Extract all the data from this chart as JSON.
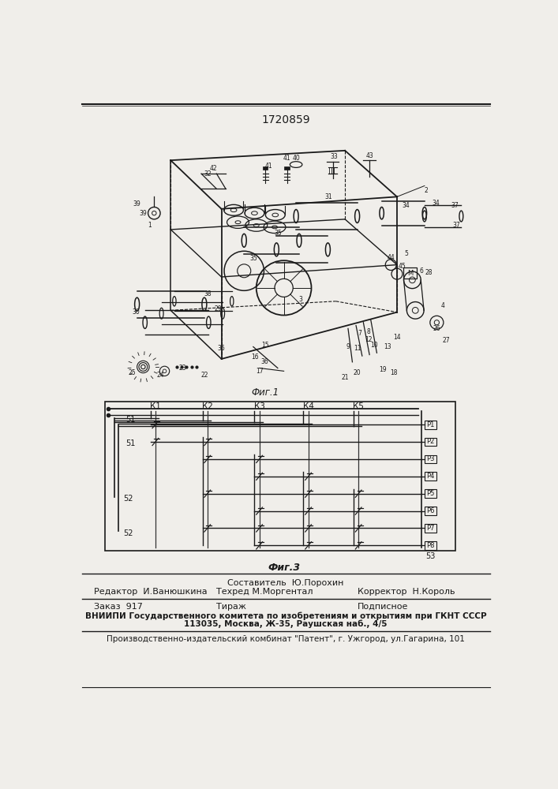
{
  "patent_number": "1720859",
  "fig1_caption": "Фиг.1",
  "fig3_caption": "Фиг.3",
  "bg_color": "#f0eeea",
  "line_color": "#1a1a1a",
  "footer": {
    "sestavitel_label": "Составитель  Ю.Порохин",
    "redaktor_label": "Редактор  И.Ванюшкина",
    "tehred_label": "Техред М.Моргентал",
    "korrektor_label": "Корректор  Н.Король",
    "zakaz_label": "Заказ  917",
    "tirazh_label": "Тираж",
    "podpisnoe_label": "Подписное",
    "vniiipi_line1": "ВНИИПИ Государственного комитета по изобретениям и открытиям при ГКНТ СССР",
    "vniiipi_line2": "113035, Москва, Ж-35, Раушская наб., 4/5",
    "proizv_line": "Производственно-издательский комбинат \"Патент\", г. Ужгород, ул.Гагарина, 101"
  }
}
